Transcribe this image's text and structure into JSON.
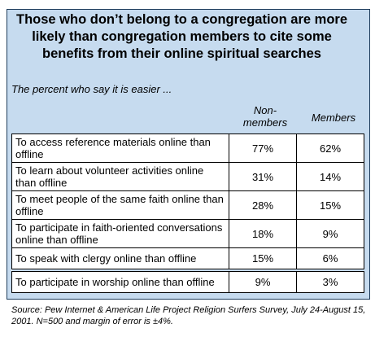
{
  "chart_data": {
    "type": "table",
    "title": "Those who don’t belong to a congregation are more likely than congregation members to cite some benefits from their online spiritual searches",
    "subtitle": "The percent who say it is easier ...",
    "columns": [
      "Non-members",
      "Members"
    ],
    "rows": [
      {
        "label": "To access reference materials online than offline",
        "nonmembers": "77%",
        "members": "62%"
      },
      {
        "label": "To learn about volunteer activities online than offline",
        "nonmembers": "31%",
        "members": "14%"
      },
      {
        "label": "To meet people of the same faith online than offline",
        "nonmembers": "28%",
        "members": "15%"
      },
      {
        "label": "To participate in faith-oriented conversations online than offline",
        "nonmembers": "18%",
        "members": "9%"
      },
      {
        "label": "To speak with clergy online than offline",
        "nonmembers": "15%",
        "members": "6%"
      },
      {
        "label": "To participate in worship online than offline",
        "nonmembers": "9%",
        "members": "3%"
      }
    ],
    "source": "Source:  Pew Internet & American Life Project Religion Surfers Survey, July 24-August 15, 2001. N=500 and margin of error is ±4%."
  }
}
